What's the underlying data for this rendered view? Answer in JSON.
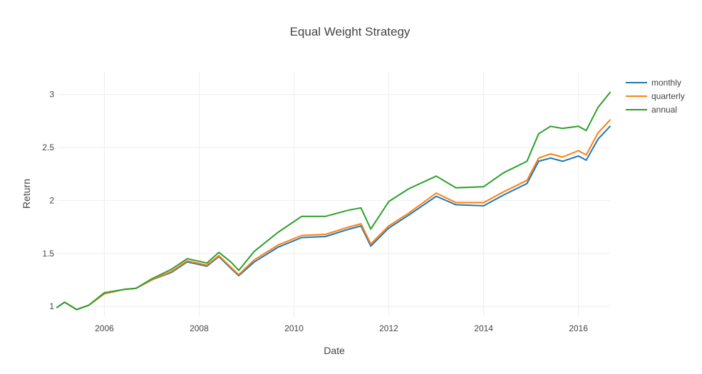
{
  "chart_data": {
    "type": "line",
    "title": "Equal Weight Strategy",
    "xlabel": "Date",
    "ylabel": "Return",
    "x_range": [
      "2005-01-01",
      "2016-09-01"
    ],
    "ylim": [
      0.9,
      3.22
    ],
    "x_ticks": [
      {
        "date": "2006-01-01",
        "label": "2006"
      },
      {
        "date": "2008-01-01",
        "label": "2008"
      },
      {
        "date": "2010-01-01",
        "label": "2010"
      },
      {
        "date": "2012-01-01",
        "label": "2012"
      },
      {
        "date": "2014-01-01",
        "label": "2014"
      },
      {
        "date": "2016-01-01",
        "label": "2016"
      }
    ],
    "y_ticks": [
      {
        "value": 1,
        "label": "1"
      },
      {
        "value": 1.5,
        "label": "1.5"
      },
      {
        "value": 2,
        "label": "2"
      },
      {
        "value": 2.5,
        "label": "2.5"
      },
      {
        "value": 3,
        "label": "3"
      }
    ],
    "grid": true,
    "legend_position": "top-right",
    "x": [
      "2005-01-01",
      "2005-03-01",
      "2005-06-01",
      "2005-09-01",
      "2006-01-01",
      "2006-06-01",
      "2006-09-01",
      "2007-01-01",
      "2007-06-01",
      "2007-10-01",
      "2008-03-01",
      "2008-06-01",
      "2008-09-01",
      "2008-11-01",
      "2009-03-01",
      "2009-09-01",
      "2010-03-01",
      "2010-09-01",
      "2011-03-01",
      "2011-06-01",
      "2011-08-15",
      "2012-01-01",
      "2012-06-01",
      "2013-01-01",
      "2013-06-01",
      "2014-01-01",
      "2014-06-01",
      "2014-12-01",
      "2015-03-01",
      "2015-06-01",
      "2015-09-01",
      "2016-01-01",
      "2016-03-01",
      "2016-06-01",
      "2016-09-01"
    ],
    "series": [
      {
        "name": "monthly",
        "color": "#1f77b4",
        "values": [
          0.99,
          1.04,
          0.97,
          1.01,
          1.12,
          1.16,
          1.17,
          1.25,
          1.32,
          1.42,
          1.38,
          1.47,
          1.36,
          1.29,
          1.42,
          1.56,
          1.65,
          1.66,
          1.73,
          1.76,
          1.57,
          1.74,
          1.86,
          2.04,
          1.96,
          1.95,
          2.05,
          2.16,
          2.37,
          2.4,
          2.37,
          2.42,
          2.38,
          2.58,
          2.7
        ]
      },
      {
        "name": "quarterly",
        "color": "#ff7f0e",
        "values": [
          0.99,
          1.04,
          0.97,
          1.01,
          1.12,
          1.16,
          1.17,
          1.25,
          1.33,
          1.43,
          1.39,
          1.48,
          1.37,
          1.3,
          1.44,
          1.58,
          1.67,
          1.68,
          1.75,
          1.78,
          1.59,
          1.76,
          1.88,
          2.07,
          1.98,
          1.98,
          2.08,
          2.19,
          2.4,
          2.44,
          2.41,
          2.47,
          2.43,
          2.64,
          2.76
        ]
      },
      {
        "name": "annual",
        "color": "#2ca02c",
        "values": [
          0.99,
          1.04,
          0.97,
          1.01,
          1.13,
          1.16,
          1.17,
          1.26,
          1.35,
          1.45,
          1.41,
          1.51,
          1.42,
          1.34,
          1.52,
          1.7,
          1.85,
          1.85,
          1.91,
          1.93,
          1.73,
          1.99,
          2.11,
          2.23,
          2.12,
          2.13,
          2.26,
          2.37,
          2.63,
          2.7,
          2.68,
          2.7,
          2.66,
          2.88,
          3.02
        ]
      }
    ]
  }
}
